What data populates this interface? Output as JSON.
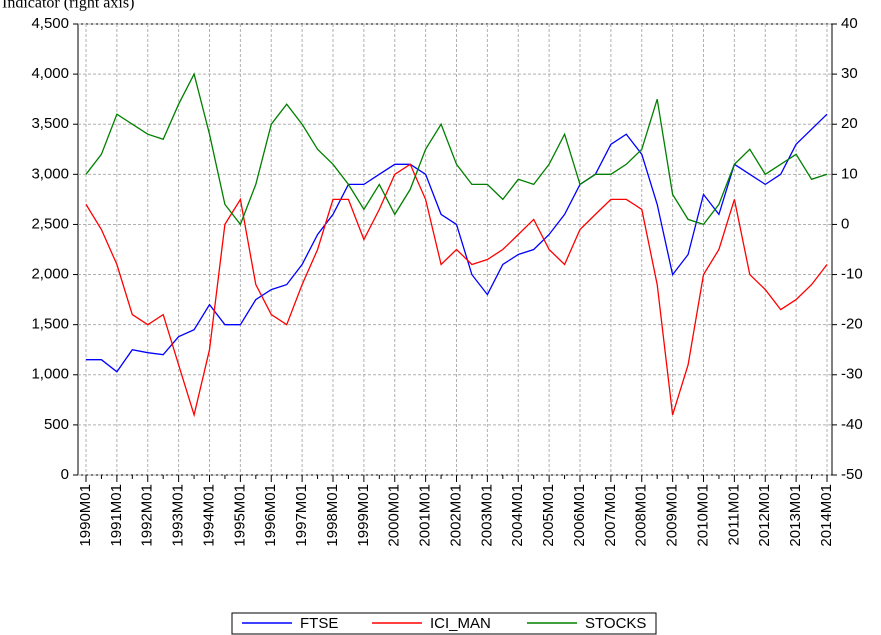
{
  "chart_data": {
    "type": "line",
    "title": "Indicator (right axis)",
    "categories": [
      "1990M01",
      null,
      "1991M01",
      null,
      "1992M01",
      null,
      "1993M01",
      null,
      "1994M01",
      null,
      "1995M01",
      null,
      "1996M01",
      null,
      "1997M01",
      null,
      "1998M01",
      null,
      "1999M01",
      null,
      "2000M01",
      null,
      "2001M01",
      null,
      "2002M01",
      null,
      "2003M01",
      null,
      "2004M01",
      null,
      "2005M01",
      null,
      "2006M01",
      null,
      "2007M01",
      null,
      "2008M01",
      null,
      "2009M01",
      null,
      "2010M01",
      null,
      "2011M01",
      null,
      "2012M01",
      null,
      "2013M01",
      null,
      "2014M01"
    ],
    "series": [
      {
        "name": "FTSE",
        "color": "#0000ff",
        "values": [
          1150,
          1150,
          1030,
          1250,
          1220,
          1200,
          1380,
          1450,
          1700,
          1500,
          1500,
          1750,
          1850,
          1900,
          2100,
          2400,
          2600,
          2900,
          2900,
          3000,
          3100,
          3100,
          3000,
          2600,
          2500,
          2000,
          1800,
          2100,
          2200,
          2250,
          2400,
          2600,
          2900,
          3000,
          3300,
          3400,
          3200,
          2700,
          2000,
          2200,
          2800,
          2600,
          3100,
          3000,
          2900,
          3000,
          3300,
          3450,
          3600
        ]
      },
      {
        "name": "ICI_MAN",
        "color": "#ff0000",
        "axis": "y2",
        "values": [
          4,
          -1,
          -8,
          -18,
          -20,
          -18,
          -28,
          -38,
          -25,
          0,
          5,
          -12,
          -18,
          -20,
          -12,
          -5,
          5,
          5,
          -3,
          3,
          10,
          12,
          5,
          -8,
          -5,
          -8,
          -7,
          -5,
          -2,
          1,
          -5,
          -8,
          -1,
          2,
          5,
          5,
          3,
          -12,
          -38,
          -28,
          -10,
          -5,
          5,
          -10,
          -13,
          -17,
          -15,
          -12,
          -8
        ]
      },
      {
        "name": "STOCKS",
        "color": "#008000",
        "axis": "y2",
        "values": [
          10,
          14,
          22,
          20,
          18,
          17,
          24,
          30,
          18,
          4,
          0,
          8,
          20,
          24,
          20,
          15,
          12,
          8,
          3,
          8,
          2,
          7,
          15,
          20,
          12,
          8,
          8,
          5,
          9,
          8,
          12,
          18,
          8,
          10,
          10,
          12,
          15,
          25,
          6,
          1,
          0,
          4,
          12,
          15,
          10,
          12,
          14,
          9,
          10
        ]
      }
    ],
    "ylim": [
      0,
      4500
    ],
    "yticks": [
      0,
      {
        "value": 500,
        "label": "500"
      },
      {
        "value": 1000,
        "label": "1,000"
      },
      {
        "value": 1500,
        "label": "1,500"
      },
      {
        "value": 2000,
        "label": "2,000"
      },
      {
        "value": 2500,
        "label": "2,500"
      },
      {
        "value": 3000,
        "label": "3,000"
      },
      {
        "value": 3500,
        "label": "3,500"
      },
      {
        "value": 4000,
        "label": "4,000"
      },
      {
        "value": 4500,
        "label": "4,500"
      }
    ],
    "y2lim": [
      -50,
      40
    ],
    "y2ticks": [
      -50,
      -40,
      -30,
      -20,
      -10,
      0,
      10,
      20,
      30,
      40
    ],
    "grid": true,
    "legend": "bottom"
  }
}
